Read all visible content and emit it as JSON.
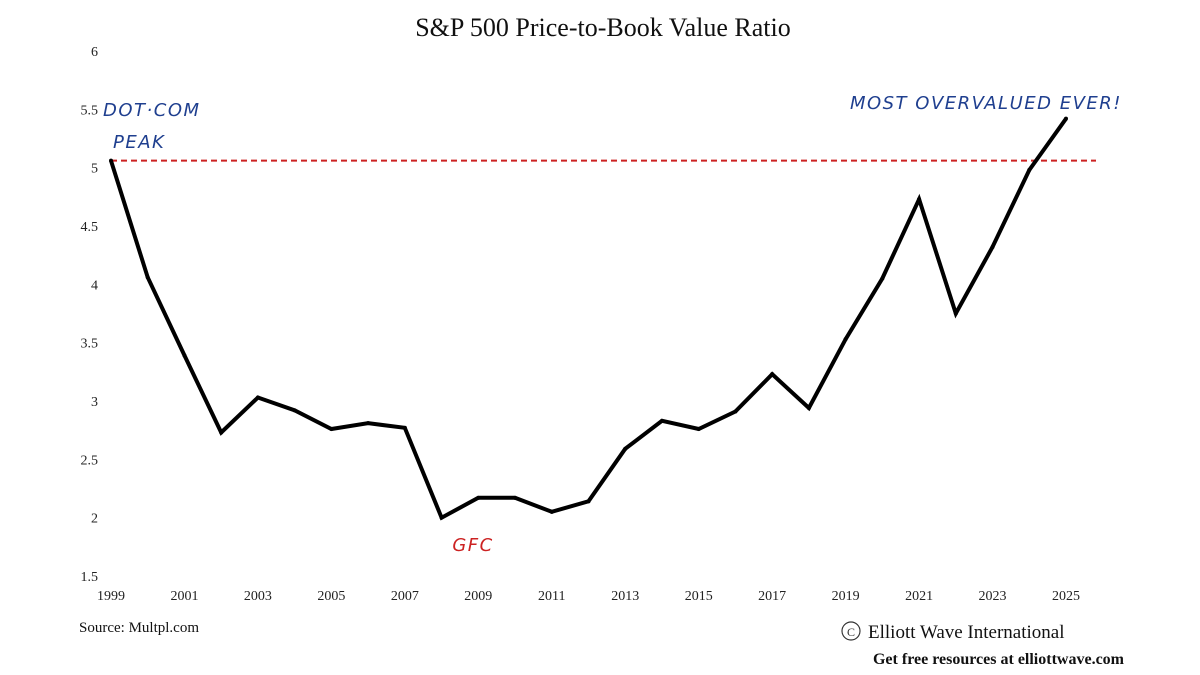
{
  "chart_data": {
    "type": "line",
    "title": "S&P 500 Price-to-Book Value Ratio",
    "xlabel": "",
    "ylabel": "",
    "xlim": [
      1999,
      2025
    ],
    "ylim": [
      1.5,
      6
    ],
    "x_ticks": [
      "1999",
      "2001",
      "2003",
      "2005",
      "2007",
      "2009",
      "2011",
      "2013",
      "2015",
      "2017",
      "2019",
      "2021",
      "2023",
      "2025"
    ],
    "y_ticks": [
      "1.5",
      "2",
      "2.5",
      "3",
      "3.5",
      "4",
      "4.5",
      "5",
      "5.5",
      "6"
    ],
    "grid": false,
    "series": [
      {
        "x": [
          1999,
          2000,
          2001,
          2002,
          2003,
          2004,
          2005,
          2006,
          2007,
          2008,
          2009,
          2010,
          2011,
          2012,
          2013,
          2014,
          2015,
          2016,
          2017,
          2018,
          2019,
          2020,
          2021,
          2022,
          2023,
          2024,
          2025
        ],
        "values": [
          5.06,
          4.06,
          3.39,
          2.73,
          3.03,
          2.92,
          2.76,
          2.81,
          2.77,
          2.0,
          2.17,
          2.17,
          2.05,
          2.14,
          2.59,
          2.83,
          2.76,
          2.91,
          3.23,
          2.94,
          3.53,
          4.05,
          4.73,
          3.75,
          4.32,
          4.98,
          5.42
        ],
        "color": "#000000"
      }
    ],
    "reference_line": {
      "y": 5.06,
      "color": "#cc2222",
      "style": "dashed"
    },
    "annotations": [
      {
        "text_line1": "DOT·COM",
        "text_line2": "PEAK",
        "x": 1999,
        "y": 5.5,
        "color": "#1f3f8f"
      },
      {
        "text": "GFC",
        "x": 2008,
        "y": 1.75,
        "color": "#cc2222"
      },
      {
        "text": "MOST OVERVALUED EVER!",
        "x": 2025,
        "y": 5.55,
        "color": "#1f3f8f"
      }
    ]
  },
  "footer": {
    "source": "Source: Multpl.com",
    "copyright_symbol": "C",
    "credit": "Elliott Wave International",
    "resources": "Get free resources at elliottwave.com"
  },
  "colors": {
    "line": "#000000",
    "reference": "#cc2222",
    "annotation_blue": "#1f3f8f",
    "annotation_red": "#cc2222"
  }
}
